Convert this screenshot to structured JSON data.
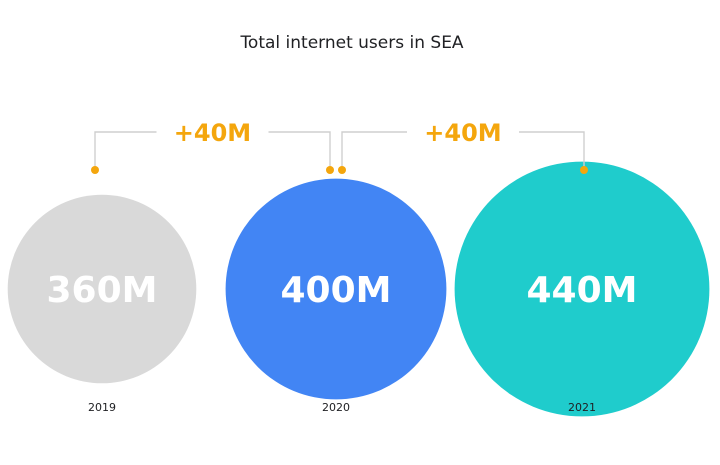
{
  "chart_data": {
    "type": "bubble",
    "title": "Total internet users in SEA",
    "categories": [
      "2019",
      "2020",
      "2021"
    ],
    "values": [
      360,
      400,
      440
    ],
    "value_labels": [
      "360M",
      "400M",
      "440M"
    ],
    "unit": "M",
    "colors": [
      "#d9d9d9",
      "#4285f4",
      "#1fcccc"
    ],
    "annotations": [
      {
        "from": "2019",
        "to": "2020",
        "label": "+40M"
      },
      {
        "from": "2020",
        "to": "2021",
        "label": "+40M"
      }
    ],
    "annotation_color": "#f4a60d",
    "connector_color": "#cfcfcf"
  }
}
